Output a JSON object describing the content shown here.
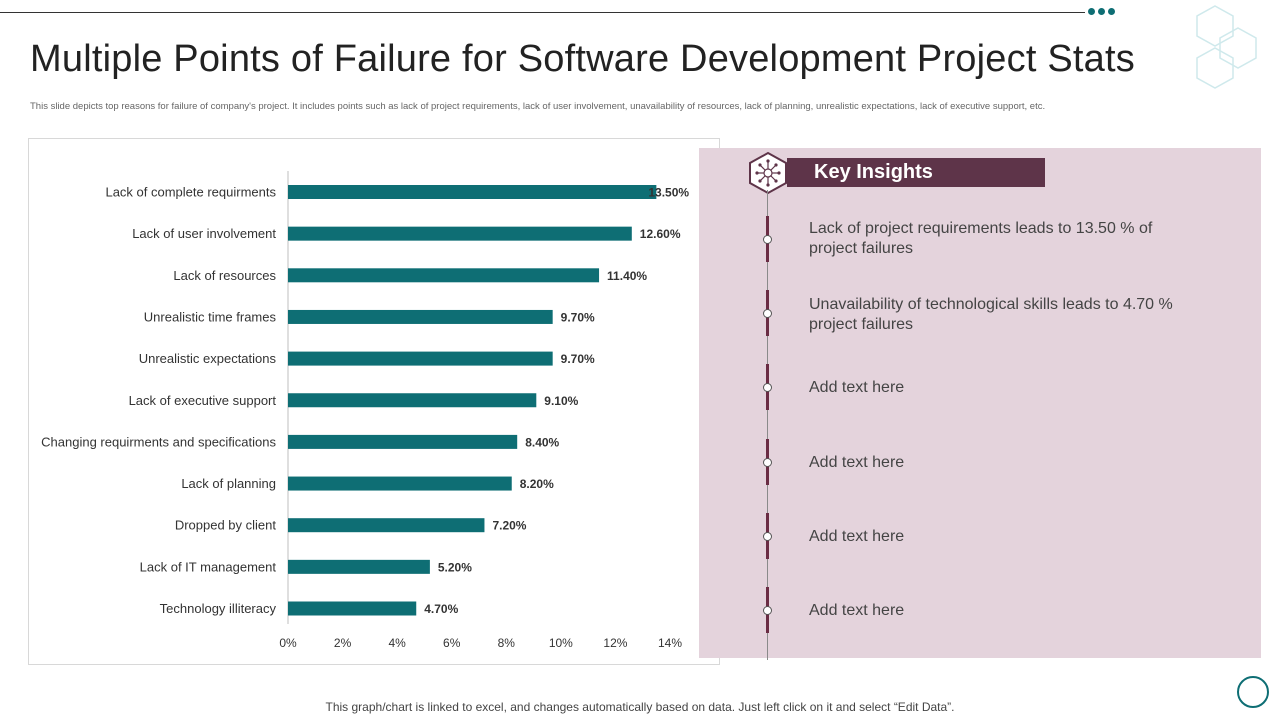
{
  "slide": {
    "title": "Multiple Points of Failure for Software Development Project Stats",
    "subtitle": "This slide depicts top reasons for failure of company's project. It includes points such as lack of project requirements, lack of user involvement, unavailability of resources, lack of planning, unrealistic expectations, lack of executive support, etc.",
    "footer": "This graph/chart is linked to excel, and changes automatically based on data. Just left click on it and select “Edit Data”."
  },
  "colors": {
    "bar": "#0e6e74",
    "accent": "#5e3449",
    "panel": "#e4d3dc"
  },
  "chart_data": {
    "type": "bar",
    "orientation": "horizontal",
    "categories": [
      "Lack of complete requirments",
      "Lack of user involvement",
      "Lack of resources",
      "Unrealistic time frames",
      "Unrealistic expectations",
      "Lack of executive support",
      "Changing requirments and specifications",
      "Lack of planning",
      "Dropped by client",
      "Lack of IT management",
      "Technology illiteracy"
    ],
    "values": [
      13.5,
      12.6,
      11.4,
      9.7,
      9.7,
      9.1,
      8.4,
      8.2,
      7.2,
      5.2,
      4.7
    ],
    "value_labels": [
      "13.50%",
      "12.60%",
      "11.40%",
      "9.70%",
      "9.70%",
      "9.10%",
      "8.40%",
      "8.20%",
      "7.20%",
      "5.20%",
      "4.70%"
    ],
    "xlim": [
      0,
      14
    ],
    "xticks": [
      "0%",
      "2%",
      "4%",
      "6%",
      "8%",
      "10%",
      "12%",
      "14%"
    ],
    "title": "",
    "xlabel": "",
    "ylabel": "",
    "grid": false
  },
  "insights": {
    "header": "Key Insights",
    "items": [
      "Lack of project requirements leads to 13.50 % of project failures",
      "Unavailability of technological skills leads to 4.70 % project failures",
      "Add text here",
      "Add text here",
      "Add text here",
      "Add text here"
    ]
  }
}
